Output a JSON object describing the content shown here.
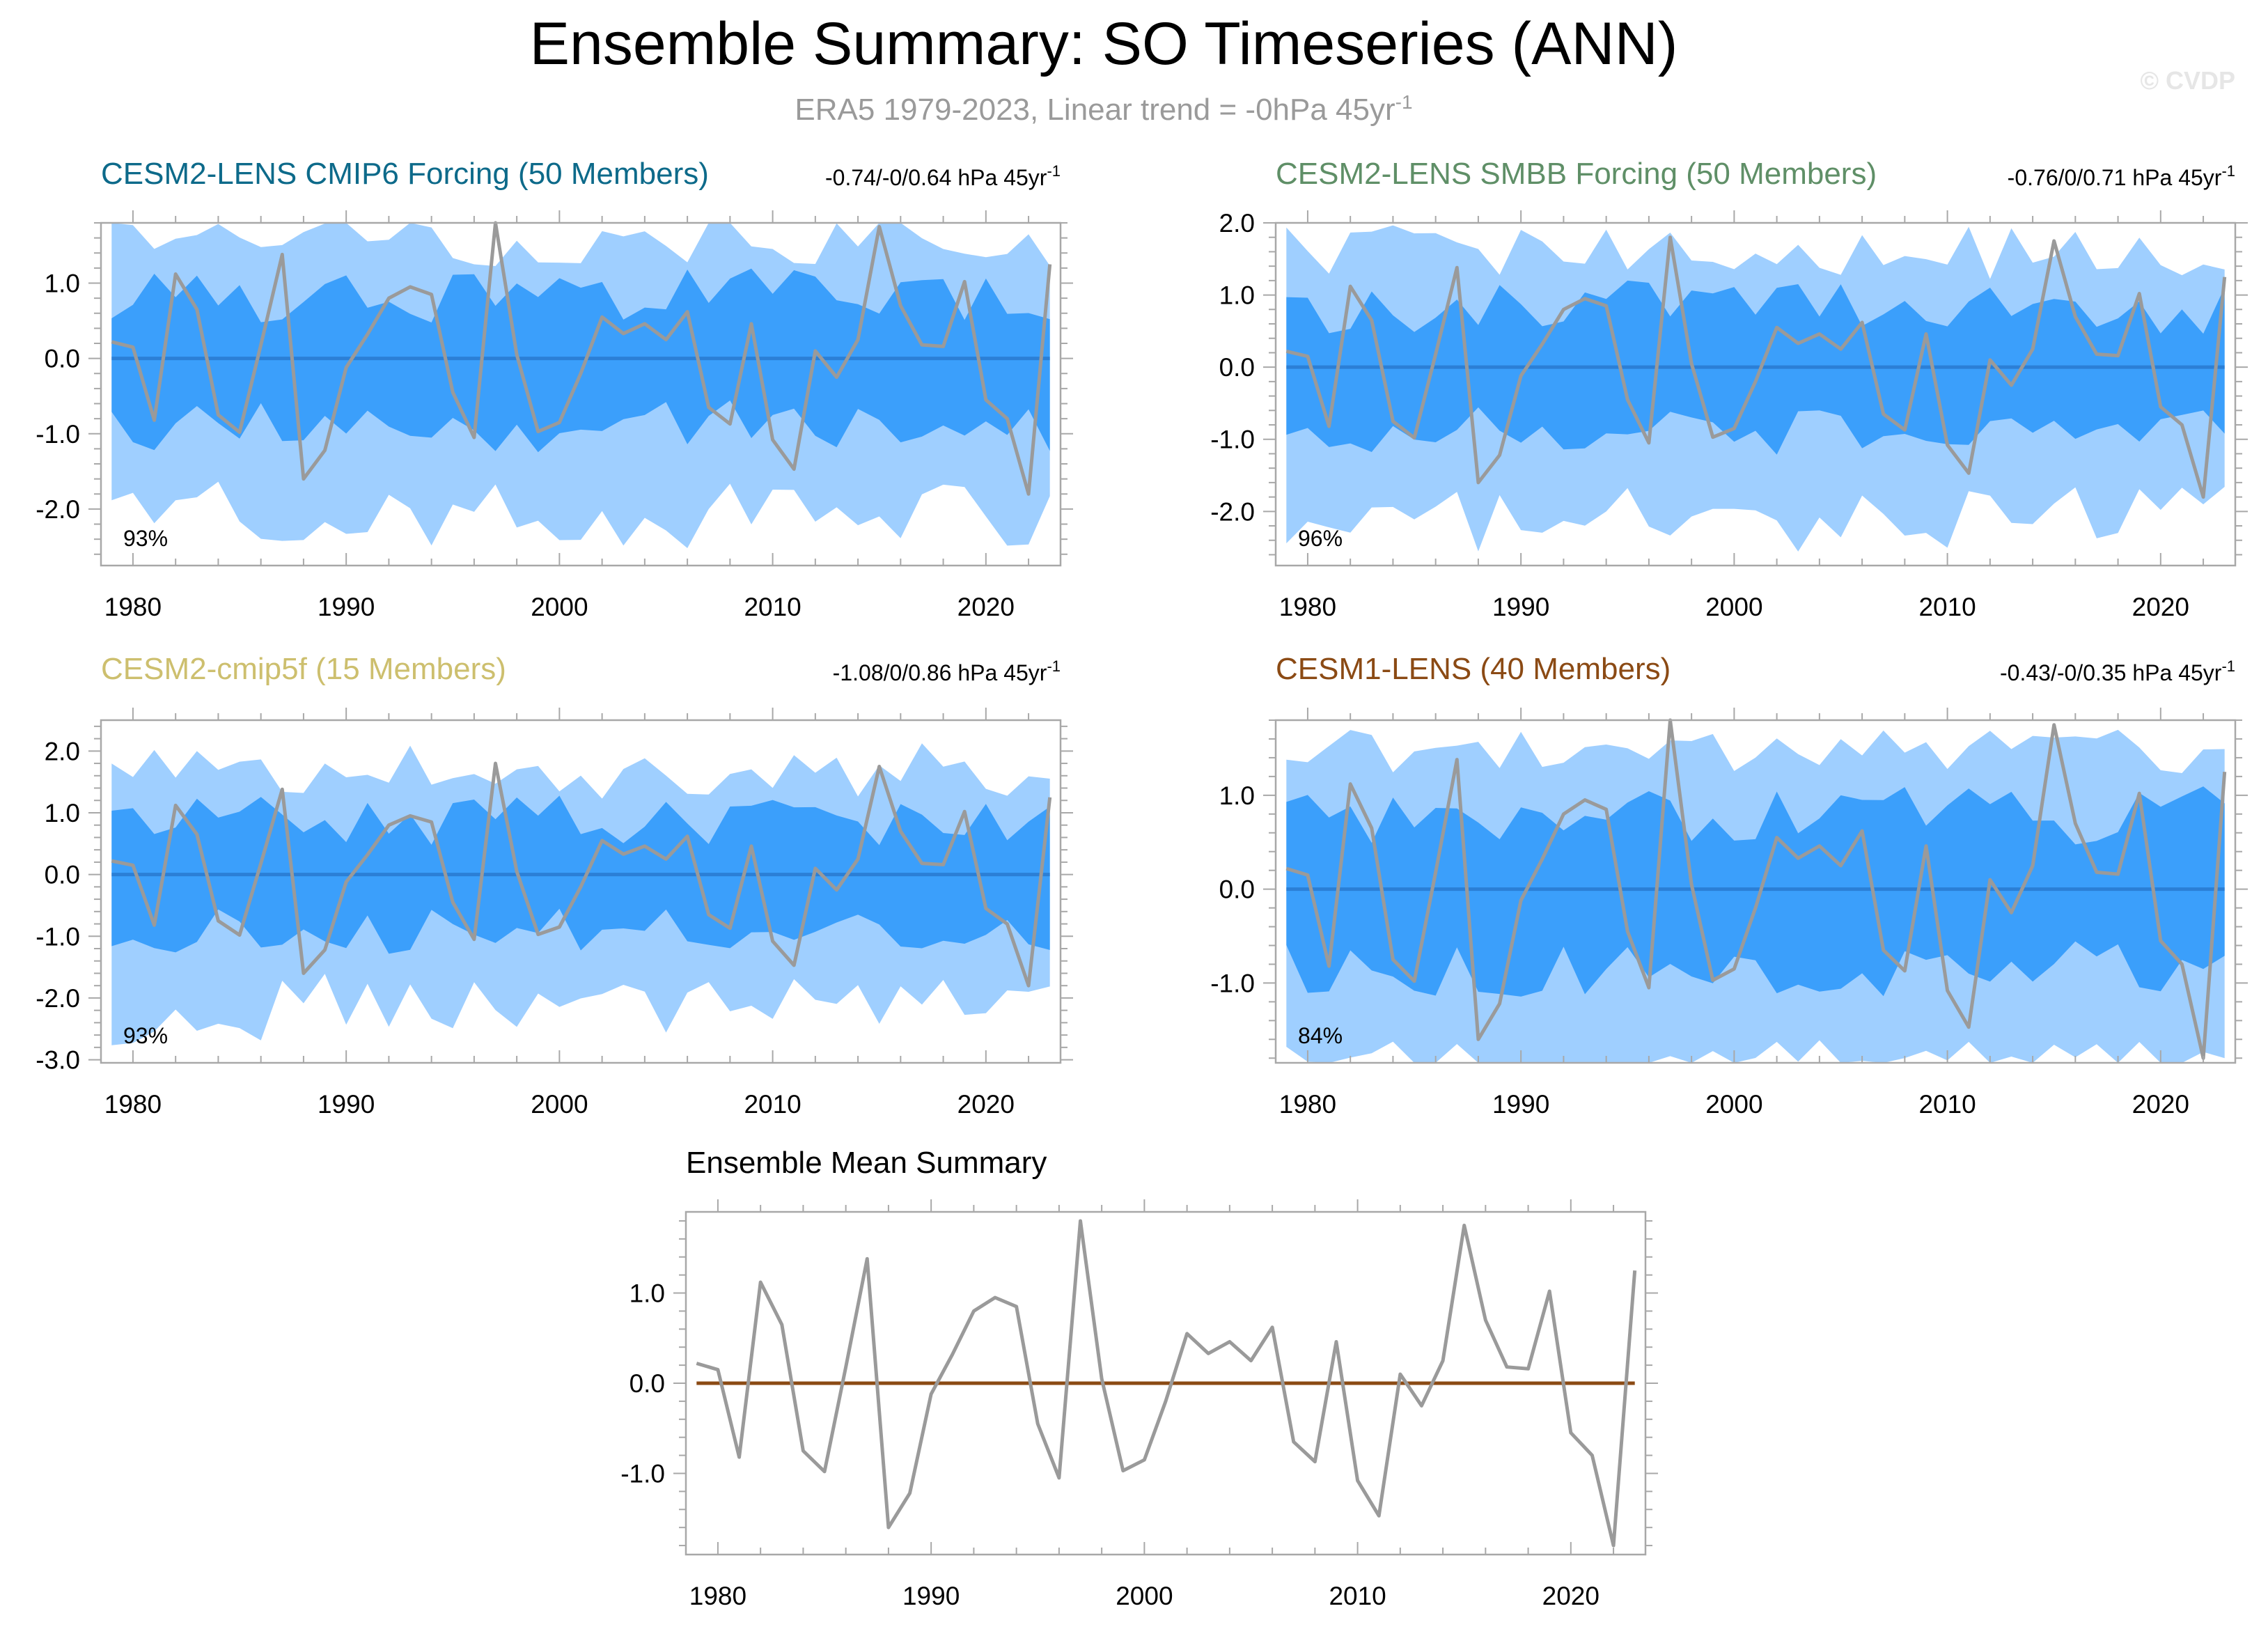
{
  "title": "Ensemble Summary: SO Timeseries (ANN)",
  "subtitle_main": "ERA5 1979-2023, Linear trend = -0hPa 45yr",
  "subtitle_sup": "-1",
  "watermark": "© CVDP",
  "colors": {
    "outer_band": "#9fcfff",
    "inner_band": "#3b9ffb",
    "ensemble_mean": "#2b7fd6",
    "obs": "#9a9a9a",
    "axis": "#a8a8a8",
    "mean_summary_line": "#8b4a14"
  },
  "chart_data": [
    {
      "type": "area",
      "title": "CESM2-LENS CMIP6 Forcing (50 Members)",
      "title_color": "#0d6a8a",
      "trend_label": "-0.74/-0/0.64 hPa 45yr",
      "trend_sup": "-1",
      "pct_label": "93%",
      "ylim": [
        -2.75,
        1.8
      ],
      "yticks": [
        1.0,
        0.0,
        -1.0,
        -2.0
      ],
      "ytick_labels": [
        "1.0",
        "0.0",
        "-1.0",
        "-2.0"
      ],
      "seed": 11
    },
    {
      "type": "area",
      "title": "CESM2-LENS SMBB Forcing (50 Members)",
      "title_color": "#5f8f67",
      "trend_label": "-0.76/0/0.71 hPa 45yr",
      "trend_sup": "-1",
      "pct_label": "96%",
      "ylim": [
        -2.75,
        2.0
      ],
      "yticks": [
        2.0,
        1.0,
        0.0,
        -1.0,
        -2.0
      ],
      "ytick_labels": [
        "2.0",
        "1.0",
        "0.0",
        "-1.0",
        "-2.0"
      ],
      "seed": 23
    },
    {
      "type": "area",
      "title": "CESM2-cmip5f (15 Members)",
      "title_color": "#cdbf6e",
      "trend_label": "-1.08/0/0.86 hPa 45yr",
      "trend_sup": "-1",
      "pct_label": "93%",
      "ylim": [
        -3.05,
        2.5
      ],
      "yticks": [
        2.0,
        1.0,
        0.0,
        -1.0,
        -2.0,
        -3.0
      ],
      "ytick_labels": [
        "2.0",
        "1.0",
        "0.0",
        "-1.0",
        "-2.0",
        "-3.0"
      ],
      "seed": 37
    },
    {
      "type": "area",
      "title": "CESM1-LENS (40 Members)",
      "title_color": "#8b4a14",
      "trend_label": "-0.43/-0/0.35 hPa 45yr",
      "trend_sup": "-1",
      "pct_label": "84%",
      "ylim": [
        -1.85,
        1.8
      ],
      "yticks": [
        1.0,
        0.0,
        -1.0
      ],
      "ytick_labels": [
        "1.0",
        "0.0",
        "-1.0"
      ],
      "seed": 51
    },
    {
      "type": "line",
      "title": "Ensemble Mean Summary",
      "ylim": [
        -1.9,
        1.9
      ],
      "yticks": [
        1.0,
        0.0,
        -1.0
      ],
      "ytick_labels": [
        "1.0",
        "0.0",
        "-1.0"
      ]
    }
  ],
  "shared": {
    "xlim": [
      1978.5,
      2023.5
    ],
    "xticks": [
      1980,
      1990,
      2000,
      2010,
      2020
    ],
    "xtick_labels": [
      "1980",
      "1990",
      "2000",
      "2010",
      "2020"
    ],
    "years": [
      1979,
      1980,
      1981,
      1982,
      1983,
      1984,
      1985,
      1986,
      1987,
      1988,
      1989,
      1990,
      1991,
      1992,
      1993,
      1994,
      1995,
      1996,
      1997,
      1998,
      1999,
      2000,
      2001,
      2002,
      2003,
      2004,
      2005,
      2006,
      2007,
      2008,
      2009,
      2010,
      2011,
      2012,
      2013,
      2014,
      2015,
      2016,
      2017,
      2018,
      2019,
      2020,
      2021,
      2022,
      2023
    ],
    "obs_values": [
      0.22,
      0.15,
      -0.82,
      1.12,
      0.65,
      -0.75,
      -0.98,
      0.18,
      1.38,
      -1.6,
      -1.22,
      -0.12,
      0.32,
      0.8,
      0.95,
      0.85,
      -0.45,
      -1.05,
      1.8,
      0.05,
      -0.97,
      -0.85,
      -0.2,
      0.55,
      0.33,
      0.46,
      0.25,
      0.62,
      -0.65,
      -0.87,
      0.46,
      -1.08,
      -1.47,
      0.1,
      -0.25,
      0.25,
      1.75,
      0.7,
      0.18,
      0.16,
      1.02,
      -0.55,
      -0.8,
      -1.8,
      1.25
    ],
    "ensemble_mean": 0.0
  }
}
